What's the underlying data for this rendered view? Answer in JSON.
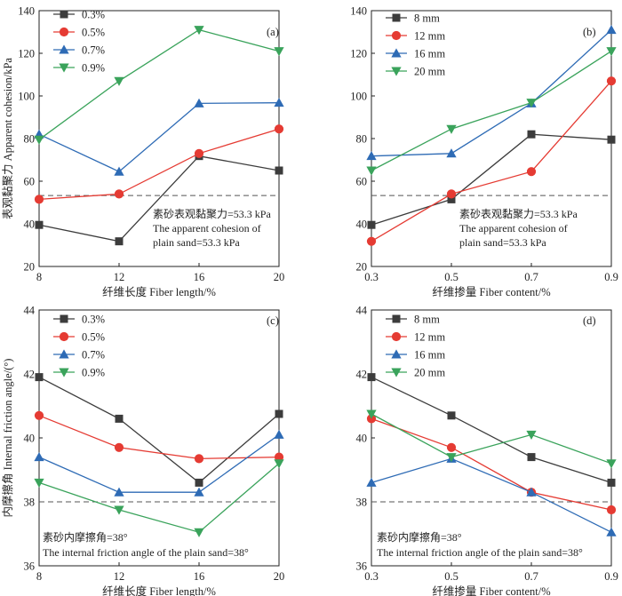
{
  "chart_data": [
    {
      "type": "line",
      "panel": "(a)",
      "ylabel": "表观黏聚力 Apparent cohesion/kPa",
      "xlabel": "纤维长度 Fiber length/%",
      "categories": [
        "8",
        "12",
        "16",
        "20"
      ],
      "x": [
        8,
        12,
        16,
        20
      ],
      "xlim": [
        8,
        20
      ],
      "ylim": [
        20,
        140
      ],
      "yticks": [
        20,
        40,
        60,
        80,
        100,
        120,
        140
      ],
      "yticklabels": [
        "20",
        "40",
        "60",
        "80",
        "100",
        "120",
        "140"
      ],
      "reference": {
        "value": 53.3,
        "label_cn": "素砂表观黏聚力=53.3 kPa",
        "label_en_1": "The apparent cohesion of",
        "label_en_2": "plain sand=53.3 kPa"
      },
      "legend_position": "top-left",
      "series": [
        {
          "name": "0.3%",
          "color": "#3c3c3c",
          "marker": "square",
          "values": [
            39.5,
            31.8,
            71.8,
            65.0
          ]
        },
        {
          "name": "0.5%",
          "color": "#e53b33",
          "marker": "circle",
          "values": [
            51.5,
            54.0,
            73.0,
            84.5
          ]
        },
        {
          "name": "0.7%",
          "color": "#2e6bb5",
          "marker": "triangle-up",
          "values": [
            82.0,
            64.5,
            96.5,
            96.8
          ]
        },
        {
          "name": "0.9%",
          "color": "#3aa35b",
          "marker": "triangle-down",
          "values": [
            79.5,
            107.0,
            131.0,
            121.0
          ]
        }
      ]
    },
    {
      "type": "line",
      "panel": "(b)",
      "ylabel": "",
      "xlabel": "纤维掺量 Fiber content/%",
      "categories": [
        "0.3",
        "0.5",
        "0.7",
        "0.9"
      ],
      "x": [
        0.3,
        0.5,
        0.7,
        0.9
      ],
      "xlim": [
        0.3,
        0.9
      ],
      "ylim": [
        20,
        140
      ],
      "yticks": [
        20,
        40,
        60,
        80,
        100,
        120,
        140
      ],
      "yticklabels": [
        "20",
        "40",
        "60",
        "80",
        "100",
        "120",
        "140"
      ],
      "reference": {
        "value": 53.3,
        "label_cn": "素砂表观黏聚力=53.3 kPa",
        "label_en_1": "The apparent cohesion of",
        "label_en_2": "plain sand=53.3 kPa"
      },
      "legend_position": "top-left",
      "series": [
        {
          "name": "8 mm",
          "color": "#3c3c3c",
          "marker": "square",
          "values": [
            39.5,
            51.5,
            82.0,
            79.5
          ]
        },
        {
          "name": "12 mm",
          "color": "#e53b33",
          "marker": "circle",
          "values": [
            31.8,
            54.0,
            64.5,
            107.0
          ]
        },
        {
          "name": "16 mm",
          "color": "#2e6bb5",
          "marker": "triangle-up",
          "values": [
            71.8,
            73.0,
            96.5,
            131.0
          ]
        },
        {
          "name": "20 mm",
          "color": "#3aa35b",
          "marker": "triangle-down",
          "values": [
            65.0,
            84.5,
            96.8,
            121.0
          ]
        }
      ]
    },
    {
      "type": "line",
      "panel": "(c)",
      "ylabel": "内摩擦角 Internal friction angle/(°)",
      "xlabel": "纤维长度 Fiber length/%",
      "categories": [
        "8",
        "12",
        "16",
        "20"
      ],
      "x": [
        8,
        12,
        16,
        20
      ],
      "xlim": [
        8,
        20
      ],
      "ylim": [
        36,
        44
      ],
      "yticks": [
        36,
        38,
        40,
        42,
        44
      ],
      "yticklabels": [
        "36",
        "38",
        "40",
        "42",
        "44"
      ],
      "reference": {
        "value": 38,
        "label_cn": "素砂内摩擦角=38°",
        "label_en_1": "The internal friction angle of the plain sand=38°",
        "label_en_2": ""
      },
      "legend_position": "top-left",
      "series": [
        {
          "name": "0.3%",
          "color": "#3c3c3c",
          "marker": "square",
          "values": [
            41.9,
            40.6,
            38.6,
            40.75
          ]
        },
        {
          "name": "0.5%",
          "color": "#e53b33",
          "marker": "circle",
          "values": [
            40.7,
            39.7,
            39.35,
            39.4
          ]
        },
        {
          "name": "0.7%",
          "color": "#2e6bb5",
          "marker": "triangle-up",
          "values": [
            39.4,
            38.3,
            38.3,
            40.1
          ]
        },
        {
          "name": "0.9%",
          "color": "#3aa35b",
          "marker": "triangle-down",
          "values": [
            38.6,
            37.75,
            37.05,
            39.2
          ]
        }
      ]
    },
    {
      "type": "line",
      "panel": "(d)",
      "ylabel": "",
      "xlabel": "纤维掺量 Fiber content/%",
      "categories": [
        "0.3",
        "0.5",
        "0.7",
        "0.9"
      ],
      "x": [
        0.3,
        0.5,
        0.7,
        0.9
      ],
      "xlim": [
        0.3,
        0.9
      ],
      "ylim": [
        36,
        44
      ],
      "yticks": [
        36,
        38,
        40,
        42,
        44
      ],
      "yticklabels": [
        "36",
        "38",
        "40",
        "42",
        "44"
      ],
      "reference": {
        "value": 38,
        "label_cn": "素砂内摩擦角=38°",
        "label_en_1": "The internal friction angle of the plain sand=38°",
        "label_en_2": ""
      },
      "legend_position": "top-left",
      "series": [
        {
          "name": "8 mm",
          "color": "#3c3c3c",
          "marker": "square",
          "values": [
            41.9,
            40.7,
            39.4,
            38.6
          ]
        },
        {
          "name": "12 mm",
          "color": "#e53b33",
          "marker": "circle",
          "values": [
            40.6,
            39.7,
            38.3,
            37.75
          ]
        },
        {
          "name": "16 mm",
          "color": "#2e6bb5",
          "marker": "triangle-up",
          "values": [
            38.6,
            39.35,
            38.3,
            37.05
          ]
        },
        {
          "name": "20 mm",
          "color": "#3aa35b",
          "marker": "triangle-down",
          "values": [
            40.75,
            39.4,
            40.1,
            39.2
          ]
        }
      ]
    }
  ]
}
